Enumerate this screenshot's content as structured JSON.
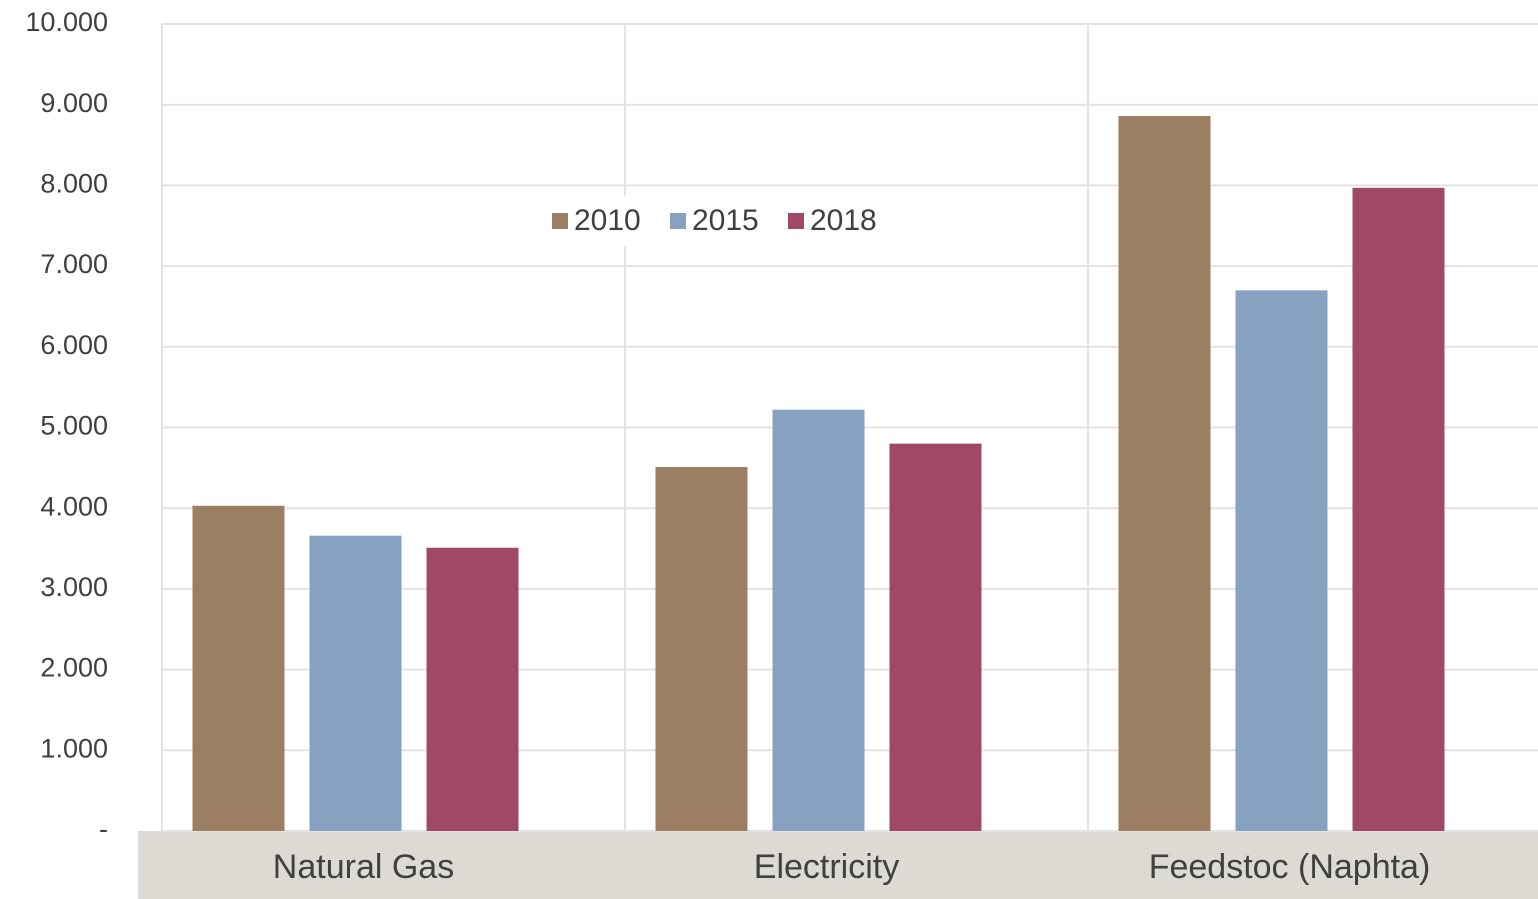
{
  "chart_data": {
    "type": "bar",
    "categories": [
      "Natural Gas",
      "Electricity",
      "Feedstoc (Naphta)"
    ],
    "series": [
      {
        "name": "2010",
        "color": "#9c7e63",
        "values": [
          4030,
          4510,
          8860
        ]
      },
      {
        "name": "2015",
        "color": "#87a2c1",
        "values": [
          3660,
          5220,
          6700
        ]
      },
      {
        "name": "2018",
        "color": "#a04868",
        "values": [
          3510,
          4800,
          7970
        ]
      }
    ],
    "ylim": [
      0,
      10000
    ],
    "yticks": [
      {
        "value": 0,
        "label": "-"
      },
      {
        "value": 1000,
        "label": "1.000"
      },
      {
        "value": 2000,
        "label": "2.000"
      },
      {
        "value": 3000,
        "label": "3.000"
      },
      {
        "value": 4000,
        "label": "4.000"
      },
      {
        "value": 5000,
        "label": "5.000"
      },
      {
        "value": 6000,
        "label": "6.000"
      },
      {
        "value": 7000,
        "label": "7.000"
      },
      {
        "value": 8000,
        "label": "8.000"
      },
      {
        "value": 9000,
        "label": "9.000"
      },
      {
        "value": 10000,
        "label": "10.000"
      }
    ],
    "grid": true,
    "legend": "top"
  }
}
